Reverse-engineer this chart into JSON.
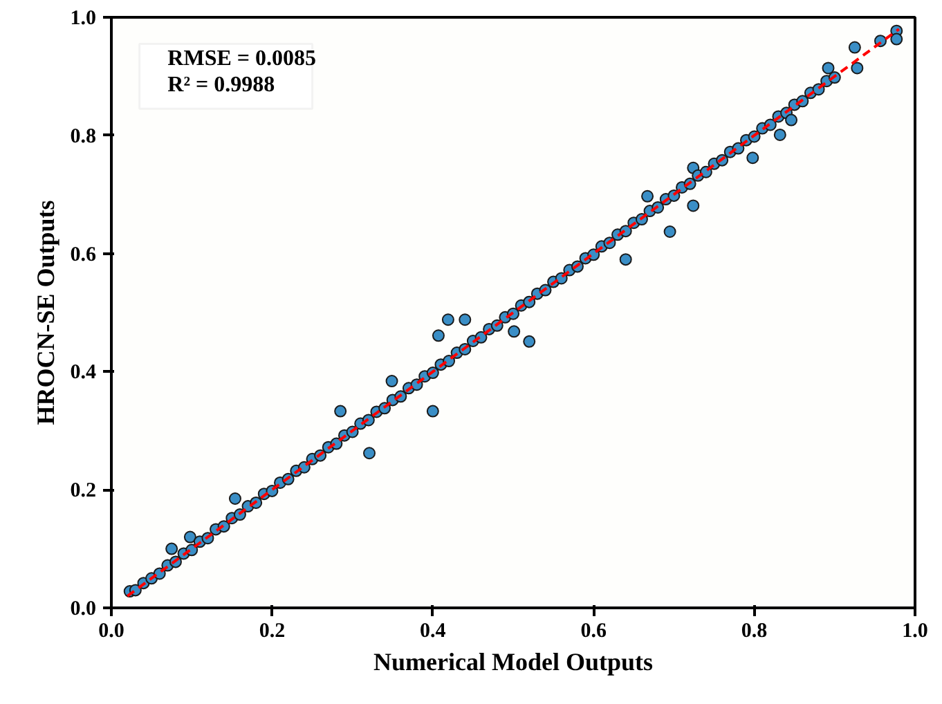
{
  "chart_data": {
    "type": "scatter",
    "xlabel": "Numerical Model Outputs",
    "ylabel": "HROCN-SE Outputs",
    "xlim": [
      0,
      1
    ],
    "ylim": [
      0,
      1
    ],
    "xticks": [
      {
        "value": 0,
        "label": "0.0"
      },
      {
        "value": 0.2,
        "label": "0.2"
      },
      {
        "value": 0.4,
        "label": "0.4"
      },
      {
        "value": 0.6,
        "label": "0.6"
      },
      {
        "value": 0.8,
        "label": "0.8"
      },
      {
        "value": 1,
        "label": "1.0"
      }
    ],
    "yticks": [
      {
        "value": 0,
        "label": "0.0"
      },
      {
        "value": 0.2,
        "label": "0.2"
      },
      {
        "value": 0.4,
        "label": "0.4"
      },
      {
        "value": 0.6,
        "label": "0.6"
      },
      {
        "value": 0.8,
        "label": "0.8"
      },
      {
        "value": 1,
        "label": "1.0"
      }
    ],
    "grid": false,
    "annotations": [
      "RMSE = 0.0085",
      "R² = 0.9988"
    ],
    "series": [
      {
        "marker": "circle",
        "color": "#3a8ec6",
        "x": [
          0.023,
          0.03,
          0.04,
          0.05,
          0.06,
          0.07,
          0.075,
          0.08,
          0.09,
          0.098,
          0.1,
          0.11,
          0.12,
          0.13,
          0.14,
          0.15,
          0.154,
          0.16,
          0.17,
          0.18,
          0.19,
          0.2,
          0.21,
          0.22,
          0.23,
          0.24,
          0.25,
          0.26,
          0.27,
          0.28,
          0.285,
          0.29,
          0.3,
          0.31,
          0.32,
          0.321,
          0.33,
          0.34,
          0.349,
          0.35,
          0.36,
          0.37,
          0.38,
          0.39,
          0.4,
          0.4,
          0.407,
          0.41,
          0.419,
          0.42,
          0.43,
          0.44,
          0.44,
          0.45,
          0.46,
          0.47,
          0.48,
          0.49,
          0.5,
          0.501,
          0.51,
          0.52,
          0.52,
          0.53,
          0.54,
          0.55,
          0.56,
          0.57,
          0.58,
          0.59,
          0.6,
          0.61,
          0.62,
          0.63,
          0.64,
          0.64,
          0.65,
          0.66,
          0.667,
          0.67,
          0.68,
          0.69,
          0.695,
          0.7,
          0.71,
          0.72,
          0.724,
          0.724,
          0.73,
          0.74,
          0.75,
          0.76,
          0.77,
          0.78,
          0.79,
          0.798,
          0.8,
          0.81,
          0.82,
          0.83,
          0.832,
          0.84,
          0.846,
          0.85,
          0.86,
          0.87,
          0.88,
          0.89,
          0.892,
          0.9,
          0.925,
          0.928,
          0.957,
          0.977,
          0.977
        ],
        "values": [
          0.028,
          0.03,
          0.042,
          0.05,
          0.058,
          0.072,
          0.1,
          0.078,
          0.092,
          0.12,
          0.098,
          0.112,
          0.118,
          0.133,
          0.138,
          0.152,
          0.185,
          0.158,
          0.172,
          0.178,
          0.193,
          0.198,
          0.212,
          0.218,
          0.232,
          0.238,
          0.252,
          0.258,
          0.272,
          0.278,
          0.333,
          0.292,
          0.298,
          0.312,
          0.318,
          0.262,
          0.332,
          0.338,
          0.384,
          0.352,
          0.358,
          0.372,
          0.378,
          0.392,
          0.398,
          0.333,
          0.461,
          0.412,
          0.488,
          0.418,
          0.432,
          0.488,
          0.438,
          0.452,
          0.458,
          0.472,
          0.478,
          0.492,
          0.498,
          0.468,
          0.512,
          0.451,
          0.518,
          0.532,
          0.538,
          0.552,
          0.558,
          0.572,
          0.578,
          0.592,
          0.598,
          0.612,
          0.618,
          0.632,
          0.59,
          0.638,
          0.652,
          0.658,
          0.697,
          0.672,
          0.678,
          0.692,
          0.637,
          0.698,
          0.712,
          0.718,
          0.681,
          0.745,
          0.732,
          0.738,
          0.752,
          0.758,
          0.772,
          0.778,
          0.792,
          0.762,
          0.798,
          0.812,
          0.818,
          0.832,
          0.801,
          0.838,
          0.826,
          0.852,
          0.858,
          0.872,
          0.878,
          0.892,
          0.914,
          0.898,
          0.949,
          0.914,
          0.96,
          0.977,
          0.963
        ]
      },
      {
        "type": "line",
        "color": "#ff0000",
        "line_style": "dashed",
        "x": [
          0.02,
          0.98
        ],
        "values": [
          0.02,
          0.98
        ]
      }
    ]
  }
}
